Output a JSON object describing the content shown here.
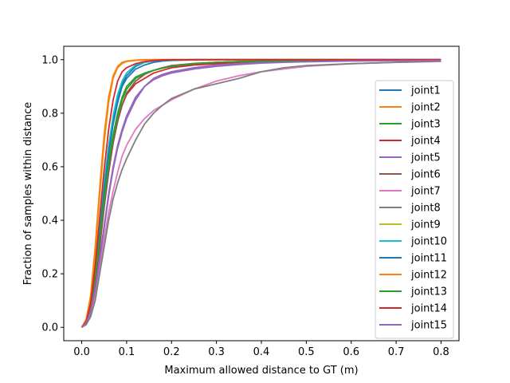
{
  "chart_data": {
    "type": "line",
    "title": "",
    "xlabel": "Maximum allowed distance to GT (m)",
    "ylabel": "Fraction of samples within distance",
    "xlim": [
      -0.04,
      0.84
    ],
    "ylim": [
      -0.05,
      1.05
    ],
    "xticks": [
      0.0,
      0.1,
      0.2,
      0.3,
      0.4,
      0.5,
      0.6,
      0.7,
      0.8
    ],
    "xtick_labels": [
      "0.0",
      "0.1",
      "0.2",
      "0.3",
      "0.4",
      "0.5",
      "0.6",
      "0.7",
      "0.8"
    ],
    "yticks": [
      0.0,
      0.2,
      0.4,
      0.6,
      0.8,
      1.0
    ],
    "ytick_labels": [
      "0.0",
      "0.2",
      "0.4",
      "0.6",
      "0.8",
      "1.0"
    ],
    "grid": false,
    "legend_position": "center-right",
    "x": [
      0.0,
      0.01,
      0.02,
      0.03,
      0.04,
      0.05,
      0.06,
      0.07,
      0.08,
      0.09,
      0.1,
      0.12,
      0.14,
      0.16,
      0.18,
      0.2,
      0.25,
      0.3,
      0.35,
      0.4,
      0.45,
      0.5,
      0.6,
      0.7,
      0.8
    ],
    "series": [
      {
        "name": "joint1",
        "color": "#1f77b4",
        "values": [
          0.0,
          0.02,
          0.08,
          0.2,
          0.36,
          0.52,
          0.66,
          0.77,
          0.85,
          0.91,
          0.94,
          0.975,
          0.99,
          0.995,
          0.998,
          0.999,
          1.0,
          1.0,
          1.0,
          1.0,
          1.0,
          1.0,
          1.0,
          1.0,
          1.0
        ]
      },
      {
        "name": "joint2",
        "color": "#ff7f0e",
        "values": [
          0.0,
          0.03,
          0.12,
          0.3,
          0.52,
          0.72,
          0.86,
          0.94,
          0.975,
          0.99,
          0.995,
          0.998,
          1.0,
          1.0,
          1.0,
          1.0,
          1.0,
          1.0,
          1.0,
          1.0,
          1.0,
          1.0,
          1.0,
          1.0,
          1.0
        ]
      },
      {
        "name": "joint3",
        "color": "#2ca02c",
        "values": [
          0.0,
          0.02,
          0.08,
          0.19,
          0.34,
          0.49,
          0.62,
          0.72,
          0.8,
          0.86,
          0.9,
          0.935,
          0.95,
          0.96,
          0.97,
          0.975,
          0.985,
          0.99,
          0.993,
          0.995,
          0.996,
          0.997,
          0.998,
          0.998,
          0.999
        ]
      },
      {
        "name": "joint4",
        "color": "#d62728",
        "values": [
          0.0,
          0.02,
          0.07,
          0.17,
          0.3,
          0.45,
          0.58,
          0.69,
          0.77,
          0.83,
          0.87,
          0.91,
          0.93,
          0.95,
          0.96,
          0.97,
          0.98,
          0.985,
          0.99,
          0.993,
          0.995,
          0.996,
          0.997,
          0.998,
          0.998
        ]
      },
      {
        "name": "joint5",
        "color": "#9467bd",
        "values": [
          0.0,
          0.015,
          0.06,
          0.14,
          0.26,
          0.38,
          0.5,
          0.6,
          0.68,
          0.74,
          0.79,
          0.86,
          0.9,
          0.93,
          0.945,
          0.955,
          0.97,
          0.98,
          0.985,
          0.99,
          0.992,
          0.994,
          0.996,
          0.997,
          0.998
        ]
      },
      {
        "name": "joint6",
        "color": "#8c564b",
        "values": [
          0.0,
          0.02,
          0.07,
          0.17,
          0.3,
          0.45,
          0.58,
          0.69,
          0.77,
          0.83,
          0.875,
          0.92,
          0.945,
          0.96,
          0.97,
          0.978,
          0.986,
          0.99,
          0.993,
          0.995,
          0.996,
          0.997,
          0.998,
          0.998,
          0.999
        ]
      },
      {
        "name": "joint7",
        "color": "#e377c2",
        "values": [
          0.0,
          0.015,
          0.05,
          0.12,
          0.22,
          0.33,
          0.43,
          0.51,
          0.58,
          0.64,
          0.68,
          0.74,
          0.78,
          0.81,
          0.83,
          0.85,
          0.89,
          0.92,
          0.94,
          0.955,
          0.965,
          0.975,
          0.985,
          0.99,
          0.993
        ]
      },
      {
        "name": "joint8",
        "color": "#7f7f7f",
        "values": [
          0.0,
          0.01,
          0.04,
          0.1,
          0.2,
          0.3,
          0.4,
          0.48,
          0.54,
          0.59,
          0.63,
          0.7,
          0.76,
          0.8,
          0.83,
          0.855,
          0.89,
          0.91,
          0.93,
          0.955,
          0.97,
          0.978,
          0.985,
          0.99,
          0.995
        ]
      },
      {
        "name": "joint9",
        "color": "#bcbd22",
        "values": [
          0.0,
          0.03,
          0.11,
          0.28,
          0.49,
          0.69,
          0.84,
          0.93,
          0.97,
          0.985,
          0.993,
          0.997,
          0.999,
          1.0,
          1.0,
          1.0,
          1.0,
          1.0,
          1.0,
          1.0,
          1.0,
          1.0,
          1.0,
          1.0,
          1.0
        ]
      },
      {
        "name": "joint10",
        "color": "#17becf",
        "values": [
          0.0,
          0.02,
          0.09,
          0.22,
          0.38,
          0.54,
          0.68,
          0.79,
          0.87,
          0.92,
          0.95,
          0.98,
          0.99,
          0.995,
          0.998,
          0.999,
          1.0,
          1.0,
          1.0,
          1.0,
          1.0,
          1.0,
          1.0,
          1.0,
          1.0
        ]
      },
      {
        "name": "joint11",
        "color": "#1f77b4",
        "values": [
          0.0,
          0.02,
          0.08,
          0.2,
          0.35,
          0.51,
          0.65,
          0.76,
          0.84,
          0.9,
          0.93,
          0.965,
          0.98,
          0.99,
          0.995,
          0.997,
          0.999,
          1.0,
          1.0,
          1.0,
          1.0,
          1.0,
          1.0,
          1.0,
          1.0
        ]
      },
      {
        "name": "joint12",
        "color": "#ff7f0e",
        "values": [
          0.0,
          0.03,
          0.11,
          0.29,
          0.5,
          0.7,
          0.85,
          0.935,
          0.972,
          0.988,
          0.994,
          0.998,
          1.0,
          1.0,
          1.0,
          1.0,
          1.0,
          1.0,
          1.0,
          1.0,
          1.0,
          1.0,
          1.0,
          1.0,
          1.0
        ]
      },
      {
        "name": "joint13",
        "color": "#2ca02c",
        "values": [
          0.0,
          0.02,
          0.08,
          0.19,
          0.33,
          0.48,
          0.61,
          0.71,
          0.79,
          0.85,
          0.89,
          0.93,
          0.948,
          0.96,
          0.968,
          0.975,
          0.985,
          0.99,
          0.993,
          0.995,
          0.996,
          0.997,
          0.998,
          0.998,
          0.999
        ]
      },
      {
        "name": "joint14",
        "color": "#d62728",
        "values": [
          0.0,
          0.02,
          0.09,
          0.23,
          0.41,
          0.59,
          0.74,
          0.85,
          0.92,
          0.955,
          0.97,
          0.985,
          0.993,
          0.997,
          0.999,
          1.0,
          1.0,
          1.0,
          1.0,
          1.0,
          1.0,
          1.0,
          1.0,
          1.0,
          1.0
        ]
      },
      {
        "name": "joint15",
        "color": "#9467bd",
        "values": [
          0.0,
          0.015,
          0.06,
          0.14,
          0.25,
          0.37,
          0.49,
          0.59,
          0.67,
          0.73,
          0.78,
          0.85,
          0.9,
          0.925,
          0.94,
          0.95,
          0.965,
          0.975,
          0.982,
          0.987,
          0.99,
          0.992,
          0.995,
          0.996,
          0.997
        ]
      }
    ]
  }
}
